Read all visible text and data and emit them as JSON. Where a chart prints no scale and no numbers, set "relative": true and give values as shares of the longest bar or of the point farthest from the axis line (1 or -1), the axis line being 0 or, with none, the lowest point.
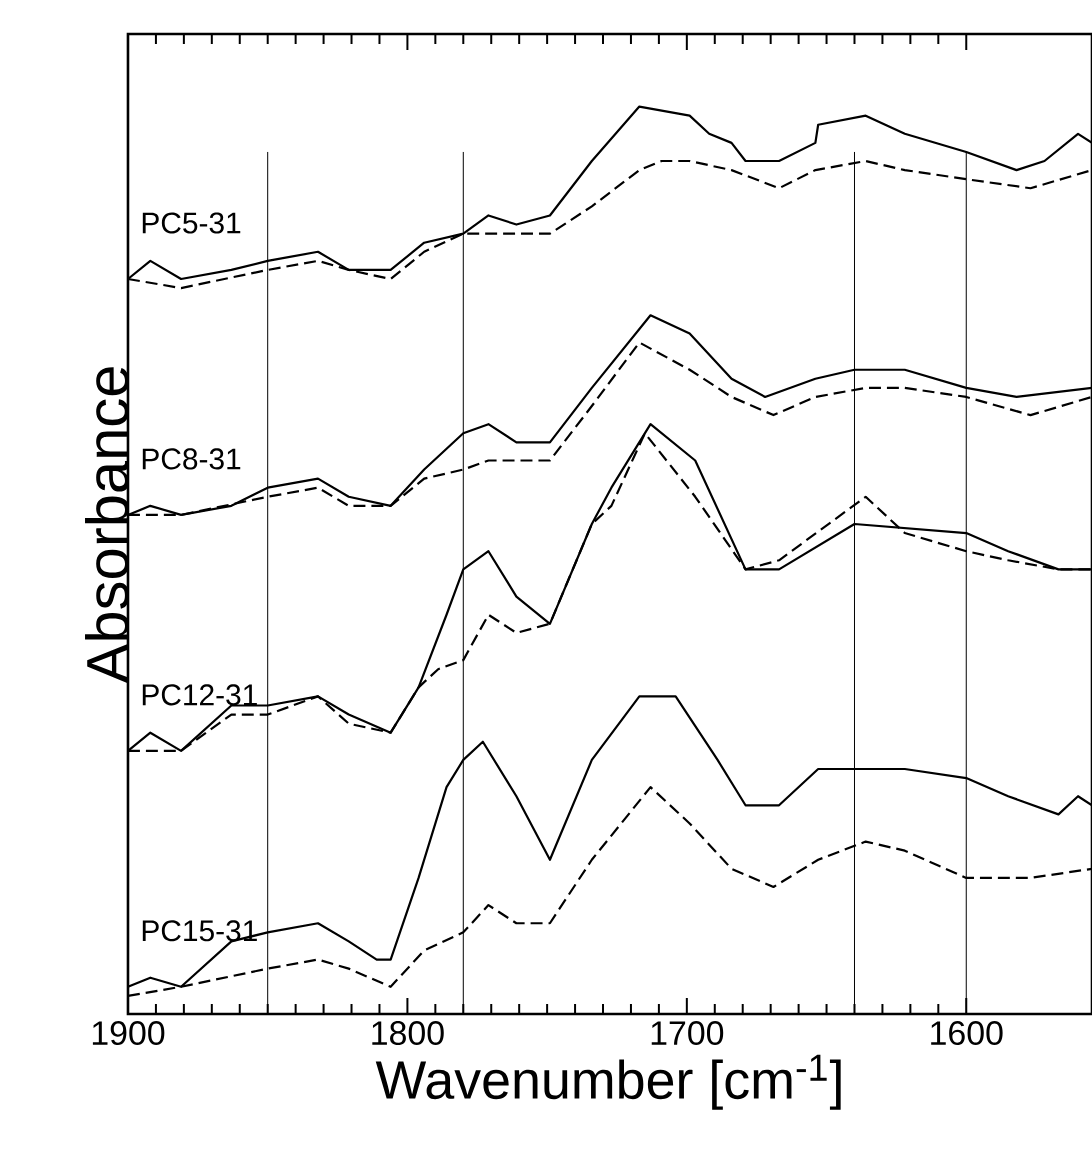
{
  "chart_data": {
    "type": "line",
    "relative": true,
    "xlabel": "Wavenumber  [cm$^{-1}$]",
    "ylabel": "Absorbance",
    "xlim": [
      1900,
      1555
    ],
    "xticks": [
      1900,
      1800,
      1700,
      1600
    ],
    "grid": false,
    "marker": "none",
    "series": [
      {
        "color": "#000000",
        "line_style": "solid",
        "x": [
          1900,
          1892,
          1881,
          1863,
          1850,
          1832,
          1821,
          1806,
          1794,
          1780,
          1771,
          1761,
          1749,
          1734,
          1717,
          1699,
          1692,
          1684,
          1679,
          1667,
          1654,
          1653,
          1636,
          1622,
          1600,
          1582,
          1572,
          1560,
          1555
        ],
        "values": [
          0.81,
          0.83,
          0.81,
          0.82,
          0.83,
          0.84,
          0.82,
          0.82,
          0.85,
          0.86,
          0.88,
          0.87,
          0.88,
          0.94,
          1.0,
          0.99,
          0.97,
          0.96,
          0.94,
          0.94,
          0.96,
          0.98,
          0.99,
          0.97,
          0.95,
          0.93,
          0.94,
          0.97,
          0.96
        ]
      },
      {
        "color": "#000000",
        "line_style": "dashed",
        "x": [
          1900,
          1881,
          1850,
          1832,
          1821,
          1806,
          1794,
          1780,
          1771,
          1749,
          1734,
          1717,
          1709,
          1699,
          1684,
          1667,
          1654,
          1636,
          1622,
          1600,
          1577,
          1555
        ],
        "values": [
          0.81,
          0.8,
          0.82,
          0.83,
          0.82,
          0.81,
          0.84,
          0.86,
          0.86,
          0.86,
          0.89,
          0.93,
          0.94,
          0.94,
          0.93,
          0.91,
          0.93,
          0.94,
          0.93,
          0.92,
          0.91,
          0.93
        ]
      },
      {
        "color": "#000000",
        "line_style": "solid",
        "x": [
          1900,
          1892,
          1881,
          1863,
          1850,
          1832,
          1821,
          1806,
          1794,
          1780,
          1771,
          1761,
          1749,
          1734,
          1713,
          1699,
          1684,
          1672,
          1654,
          1640,
          1622,
          1600,
          1582,
          1555
        ],
        "values": [
          0.55,
          0.56,
          0.55,
          0.56,
          0.58,
          0.59,
          0.57,
          0.56,
          0.6,
          0.64,
          0.65,
          0.63,
          0.63,
          0.69,
          0.77,
          0.75,
          0.7,
          0.68,
          0.7,
          0.71,
          0.71,
          0.69,
          0.68,
          0.69
        ]
      },
      {
        "color": "#000000",
        "line_style": "dashed",
        "x": [
          1900,
          1881,
          1850,
          1832,
          1821,
          1806,
          1794,
          1780,
          1771,
          1761,
          1749,
          1734,
          1717,
          1699,
          1684,
          1669,
          1654,
          1636,
          1622,
          1600,
          1577,
          1555
        ],
        "values": [
          0.55,
          0.55,
          0.57,
          0.58,
          0.56,
          0.56,
          0.59,
          0.6,
          0.61,
          0.61,
          0.61,
          0.67,
          0.74,
          0.71,
          0.68,
          0.66,
          0.68,
          0.69,
          0.69,
          0.68,
          0.66,
          0.68
        ]
      },
      {
        "color": "#000000",
        "line_style": "solid",
        "x": [
          1900,
          1892,
          1881,
          1863,
          1850,
          1832,
          1821,
          1806,
          1796,
          1786,
          1780,
          1771,
          1761,
          1749,
          1734,
          1727,
          1713,
          1697,
          1679,
          1667,
          1640,
          1600,
          1585,
          1567,
          1555
        ],
        "values": [
          0.29,
          0.31,
          0.29,
          0.34,
          0.34,
          0.35,
          0.33,
          0.31,
          0.36,
          0.44,
          0.49,
          0.51,
          0.46,
          0.43,
          0.54,
          0.58,
          0.65,
          0.61,
          0.49,
          0.49,
          0.54,
          0.53,
          0.51,
          0.49,
          0.49
        ]
      },
      {
        "color": "#000000",
        "line_style": "dashed",
        "x": [
          1900,
          1881,
          1863,
          1850,
          1832,
          1821,
          1806,
          1796,
          1789,
          1780,
          1771,
          1761,
          1749,
          1734,
          1727,
          1715,
          1697,
          1679,
          1667,
          1636,
          1622,
          1600,
          1585,
          1567,
          1555
        ],
        "values": [
          0.29,
          0.29,
          0.33,
          0.33,
          0.35,
          0.32,
          0.31,
          0.36,
          0.38,
          0.39,
          0.44,
          0.42,
          0.43,
          0.54,
          0.56,
          0.64,
          0.57,
          0.49,
          0.5,
          0.57,
          0.53,
          0.51,
          0.5,
          0.49,
          0.49
        ]
      },
      {
        "color": "#000000",
        "line_style": "solid",
        "x": [
          1900,
          1892,
          1881,
          1863,
          1850,
          1832,
          1821,
          1811,
          1806,
          1796,
          1786,
          1780,
          1773,
          1761,
          1749,
          1734,
          1717,
          1704,
          1689,
          1679,
          1667,
          1653,
          1636,
          1622,
          1600,
          1585,
          1567,
          1560,
          1555
        ],
        "values": [
          0.03,
          0.04,
          0.03,
          0.08,
          0.09,
          0.1,
          0.08,
          0.06,
          0.06,
          0.15,
          0.25,
          0.28,
          0.3,
          0.24,
          0.17,
          0.28,
          0.35,
          0.35,
          0.28,
          0.23,
          0.23,
          0.27,
          0.27,
          0.27,
          0.26,
          0.24,
          0.22,
          0.24,
          0.23
        ]
      },
      {
        "color": "#000000",
        "line_style": "dashed",
        "x": [
          1900,
          1881,
          1850,
          1832,
          1821,
          1806,
          1794,
          1780,
          1771,
          1761,
          1749,
          1734,
          1713,
          1699,
          1684,
          1669,
          1653,
          1636,
          1622,
          1600,
          1577,
          1555
        ],
        "values": [
          0.02,
          0.03,
          0.05,
          0.06,
          0.05,
          0.03,
          0.07,
          0.09,
          0.12,
          0.1,
          0.1,
          0.17,
          0.25,
          0.21,
          0.16,
          0.14,
          0.17,
          0.19,
          0.18,
          0.15,
          0.15,
          0.16
        ]
      }
    ],
    "ref_lines": [
      {
        "axis": "x",
        "value": 1850,
        "color": "#000000"
      },
      {
        "axis": "x",
        "value": 1780,
        "color": "#000000"
      },
      {
        "axis": "x",
        "value": 1640,
        "color": "#000000"
      },
      {
        "axis": "x",
        "value": 1600,
        "color": "#000000"
      }
    ],
    "annotations": [
      "PC5-31",
      "PC8-31",
      "PC12-31",
      "PC15-31"
    ]
  }
}
